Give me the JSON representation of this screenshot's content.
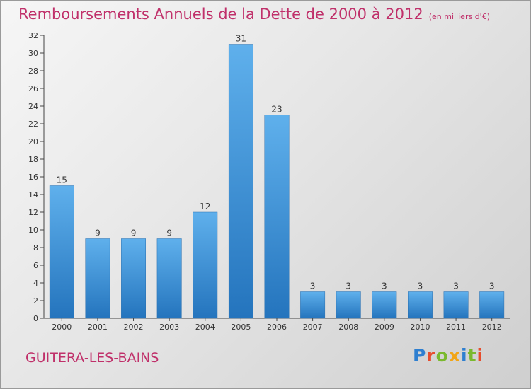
{
  "chart_data": {
    "type": "bar",
    "title": "Remboursements Annuels de la Dette de 2000 à 2012",
    "subtitle": "(en milliers d'€)",
    "categories": [
      "2000",
      "2001",
      "2002",
      "2003",
      "2004",
      "2005",
      "2006",
      "2007",
      "2008",
      "2009",
      "2010",
      "2011",
      "2012"
    ],
    "values": [
      15,
      9,
      9,
      9,
      12,
      31,
      23,
      3,
      3,
      3,
      3,
      3,
      3
    ],
    "ylim": [
      0,
      32
    ],
    "yticks": [
      0,
      2,
      4,
      6,
      8,
      10,
      12,
      14,
      16,
      18,
      20,
      22,
      24,
      26,
      28,
      30,
      32
    ],
    "xlabel": "",
    "ylabel": "",
    "grid": false,
    "bar_color": "#3b8fd6"
  },
  "location": "GUITERA-LES-BAINS",
  "logo": {
    "text": "Proxiti",
    "letters": [
      {
        "ch": "P",
        "color": "#2e7fd0"
      },
      {
        "ch": "r",
        "color": "#e74c2c"
      },
      {
        "ch": "o",
        "color": "#7ab92e"
      },
      {
        "ch": "x",
        "color": "#f2a516"
      },
      {
        "ch": "i",
        "color": "#2e7fd0"
      },
      {
        "ch": "t",
        "color": "#7ab92e"
      },
      {
        "ch": "i",
        "color": "#e74c2c"
      }
    ]
  },
  "colors": {
    "accent": "#c0306a",
    "axis": "#333333"
  }
}
